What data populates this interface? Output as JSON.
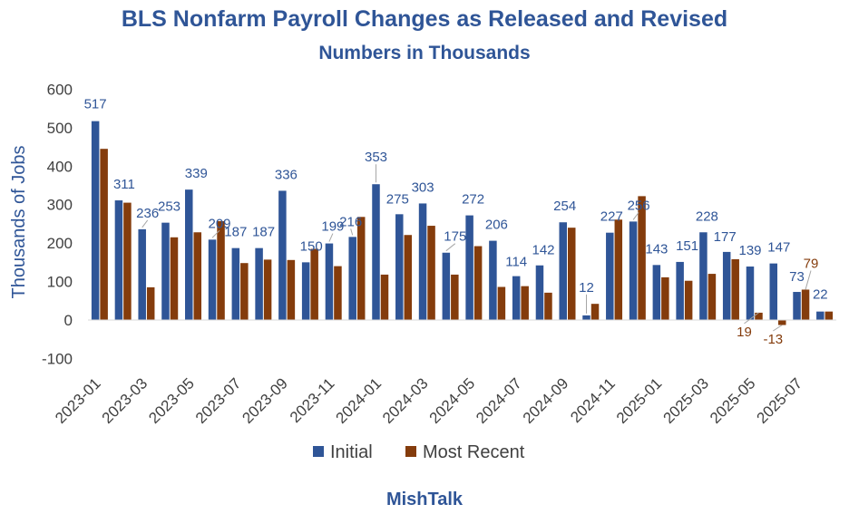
{
  "chart_data": {
    "type": "bar",
    "title": "BLS Nonfarm Payroll Changes as Released and Revised",
    "subtitle": "Numbers in Thousands",
    "ylabel": "Thousands of Jobs",
    "xlabel": "",
    "ylim": [
      -100,
      600
    ],
    "yticks": [
      "600",
      "500",
      "400",
      "300",
      "200",
      "100",
      "0",
      "-100"
    ],
    "grid": false,
    "legend_position": "bottom",
    "source": "MishTalk",
    "categories": [
      "2023-01",
      "2023-02",
      "2023-03",
      "2023-04",
      "2023-05",
      "2023-06",
      "2023-07",
      "2023-08",
      "2023-09",
      "2023-10",
      "2023-11",
      "2023-12",
      "2024-01",
      "2024-02",
      "2024-03",
      "2024-04",
      "2024-05",
      "2024-06",
      "2024-07",
      "2024-08",
      "2024-09",
      "2024-10",
      "2024-11",
      "2024-12",
      "2025-01",
      "2025-02",
      "2025-03",
      "2025-04",
      "2025-05",
      "2025-06",
      "2025-07",
      "2025-08"
    ],
    "x_tick_labels": [
      "2023-01",
      "2023-03",
      "2023-05",
      "2023-07",
      "2023-09",
      "2023-11",
      "2024-01",
      "2024-03",
      "2024-05",
      "2024-07",
      "2024-09",
      "2024-11",
      "2025-01",
      "2025-03",
      "2025-05",
      "2025-07"
    ],
    "series": [
      {
        "name": "Initial",
        "color": "#2f5597",
        "values": [
          517,
          311,
          236,
          253,
          339,
          209,
          187,
          187,
          336,
          150,
          199,
          216,
          353,
          275,
          303,
          175,
          272,
          206,
          114,
          142,
          254,
          12,
          227,
          256,
          143,
          151,
          228,
          177,
          139,
          147,
          73,
          22
        ]
      },
      {
        "name": "Most Recent",
        "color": "#843c0c",
        "values": [
          445,
          305,
          85,
          215,
          228,
          257,
          148,
          157,
          156,
          185,
          140,
          268,
          118,
          221,
          245,
          118,
          192,
          86,
          88,
          71,
          240,
          42,
          261,
          322,
          111,
          102,
          120,
          158,
          19,
          -13,
          79,
          22
        ]
      }
    ],
    "data_labels": {
      "Initial": [
        "517",
        "311",
        "236",
        "253",
        "339",
        "209",
        "187",
        "187",
        "336",
        "150",
        "199",
        "216",
        "353",
        "275",
        "303",
        "175",
        "272",
        "206",
        "114",
        "142",
        "254",
        "12",
        "227",
        "256",
        "143",
        "151",
        "228",
        "177",
        "139",
        "147",
        "73",
        "22"
      ],
      "Most Recent": [
        {
          "index": 28,
          "text": "19"
        },
        {
          "index": 29,
          "text": "-13"
        },
        {
          "index": 30,
          "text": "79"
        }
      ]
    }
  }
}
